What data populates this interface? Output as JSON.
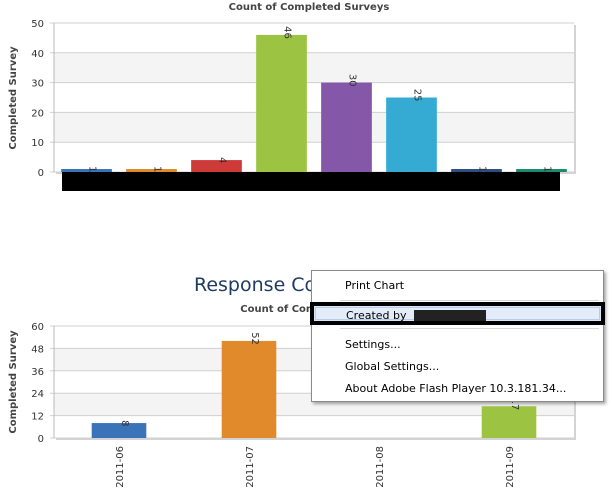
{
  "chart_data": [
    {
      "type": "bar",
      "title": "Count of Completed Surveys",
      "ylabel": "Completed Survey",
      "xlabel": "",
      "ylim": [
        0,
        50
      ],
      "yticks": [
        0,
        10,
        20,
        30,
        40,
        50
      ],
      "grid": true,
      "values": [
        1,
        1,
        4,
        46,
        30,
        25,
        1,
        1
      ],
      "colors": [
        "#3b73b9",
        "#e08a2b",
        "#cc3a3a",
        "#9dc343",
        "#8457a8",
        "#35abd3",
        "#2d4e80",
        "#1d8a6e"
      ],
      "categories_redacted": true
    },
    {
      "type": "bar",
      "title": "Count of Comple",
      "ylabel": "Completed Survey",
      "xlabel": "",
      "ylim": [
        0,
        60
      ],
      "yticks": [
        0,
        12,
        24,
        36,
        48,
        60
      ],
      "grid": true,
      "categories": [
        "2011-06",
        "2011-07",
        "2011-08",
        "2011-09"
      ],
      "values": [
        8,
        52,
        null,
        17
      ],
      "colors": [
        "#3b73b9",
        "#e08a2b",
        "#cc3a3a",
        "#9dc343"
      ]
    }
  ],
  "heading2": "Response Co",
  "context_menu": {
    "items": [
      {
        "label": "Print Chart"
      },
      {
        "label": "Created by"
      },
      {
        "label": "Settings..."
      },
      {
        "label": "Global Settings..."
      },
      {
        "label": "About Adobe Flash Player 10.3.181.34..."
      }
    ],
    "highlighted_index": 1,
    "colors": {
      "highlight_bg": "#e3ecf8",
      "border": "#8a8a8a"
    }
  }
}
